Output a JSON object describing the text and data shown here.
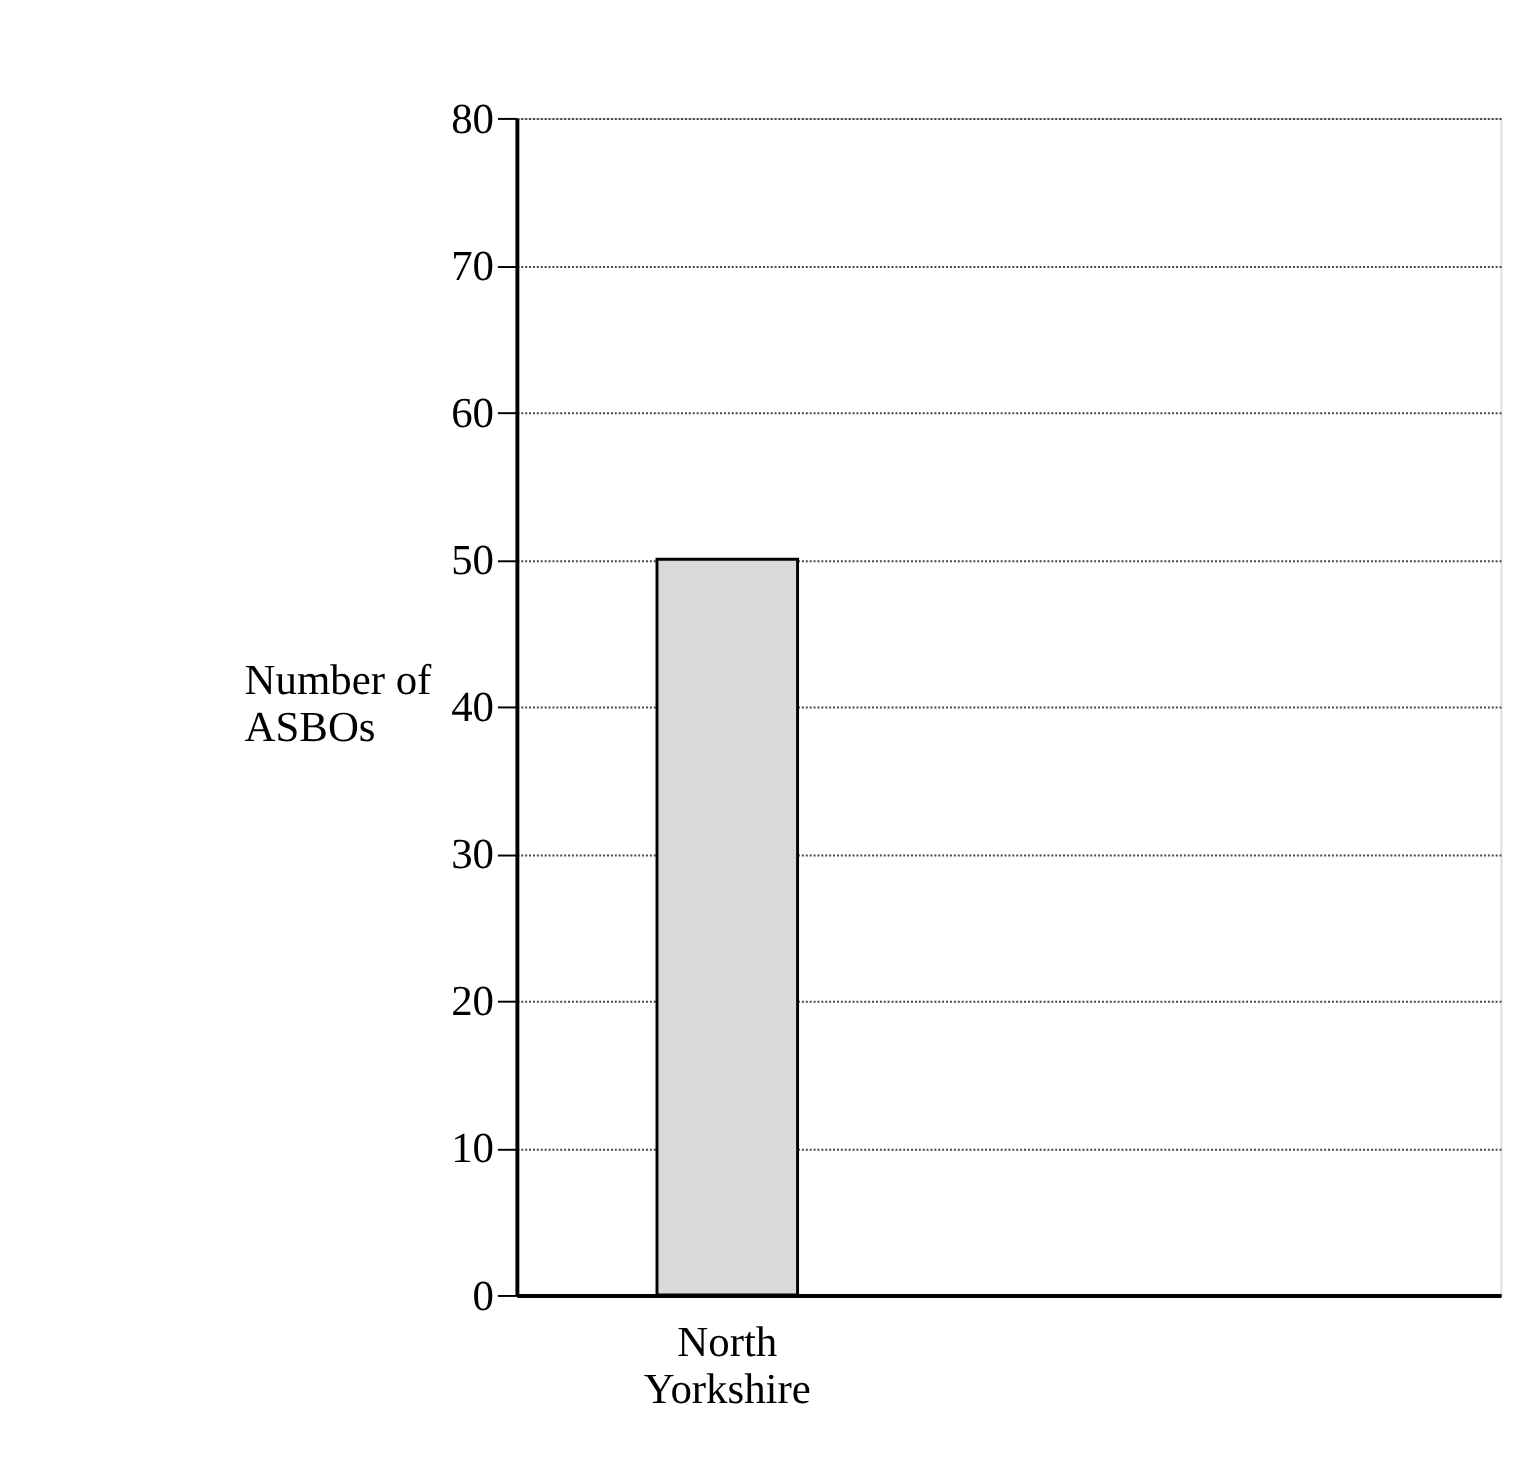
{
  "chart_data": {
    "type": "bar",
    "ylabel": "Number of ASBOs",
    "categories": [
      "North Yorkshire",
      null,
      null
    ],
    "values": [
      50,
      null,
      null
    ],
    "color": "#d9d9d9",
    "ylim": [
      0,
      80
    ],
    "yticks": [
      0,
      10,
      20,
      30,
      40,
      50,
      60,
      70,
      80
    ],
    "grid": "y"
  }
}
